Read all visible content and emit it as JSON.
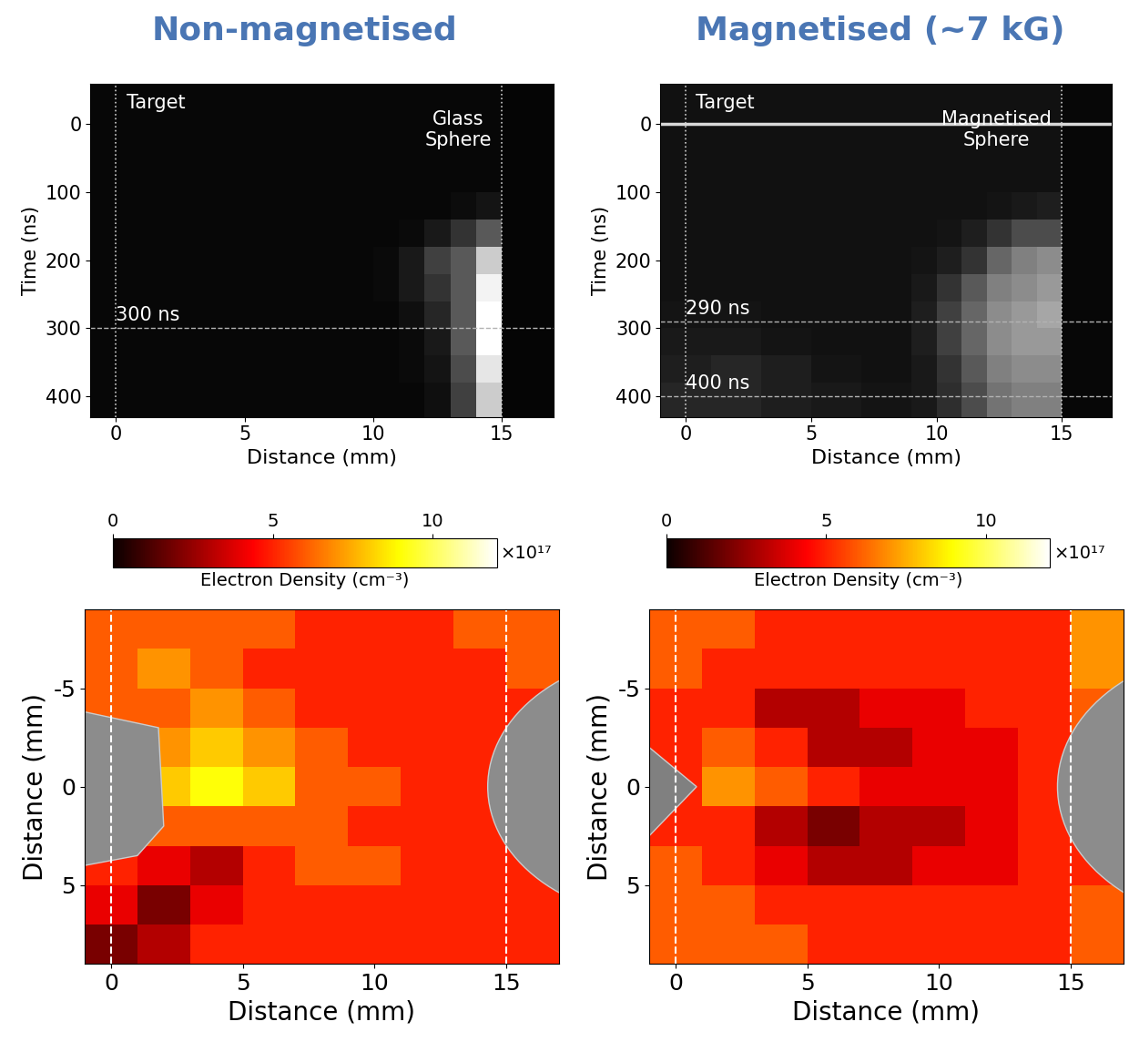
{
  "chart_data": [
    {
      "type": "streak",
      "title": "Non-magnetised",
      "xlabel": "Distance (mm)",
      "ylabel": "Time (ns)",
      "xlim": [
        -1,
        17
      ],
      "ylim": [
        430,
        -60
      ],
      "xticks": [
        0,
        5,
        10,
        15
      ],
      "yticks": [
        0,
        100,
        200,
        300,
        400
      ],
      "target_x": 0,
      "sphere_x": 15,
      "target_label": "Target",
      "sphere_label": "Glass\nSphere",
      "time_labels": [
        {
          "value": 300,
          "label": "300 ns"
        }
      ],
      "clim": [
        0,
        1
      ],
      "x_edges": [
        -1,
        1,
        3,
        5,
        7,
        9,
        10,
        11,
        12,
        13,
        14,
        15,
        16,
        17
      ],
      "y_edges": [
        -60,
        -20,
        20,
        60,
        100,
        140,
        180,
        220,
        260,
        300,
        340,
        380,
        430
      ],
      "cells": [
        [
          0.03,
          0.03,
          0.03,
          0.03,
          0.03,
          0.03,
          0.03,
          0.03,
          0.03,
          0.03,
          0.03,
          0.02,
          0.02
        ],
        [
          0.03,
          0.03,
          0.03,
          0.03,
          0.03,
          0.03,
          0.03,
          0.03,
          0.03,
          0.03,
          0.03,
          0.02,
          0.02
        ],
        [
          0.03,
          0.03,
          0.03,
          0.03,
          0.03,
          0.03,
          0.03,
          0.03,
          0.03,
          0.03,
          0.03,
          0.02,
          0.02
        ],
        [
          0.03,
          0.03,
          0.03,
          0.03,
          0.03,
          0.03,
          0.03,
          0.03,
          0.03,
          0.03,
          0.03,
          0.02,
          0.02
        ],
        [
          0.03,
          0.03,
          0.03,
          0.03,
          0.03,
          0.03,
          0.03,
          0.03,
          0.03,
          0.05,
          0.08,
          0.02,
          0.02
        ],
        [
          0.03,
          0.03,
          0.03,
          0.03,
          0.03,
          0.03,
          0.03,
          0.04,
          0.1,
          0.2,
          0.35,
          0.02,
          0.02
        ],
        [
          0.03,
          0.03,
          0.03,
          0.03,
          0.03,
          0.03,
          0.04,
          0.1,
          0.25,
          0.35,
          0.8,
          0.02,
          0.02
        ],
        [
          0.03,
          0.03,
          0.03,
          0.03,
          0.03,
          0.03,
          0.04,
          0.1,
          0.2,
          0.35,
          0.95,
          0.02,
          0.02
        ],
        [
          0.03,
          0.03,
          0.03,
          0.03,
          0.03,
          0.03,
          0.03,
          0.06,
          0.15,
          0.35,
          1.0,
          0.02,
          0.02
        ],
        [
          0.03,
          0.03,
          0.03,
          0.03,
          0.03,
          0.03,
          0.03,
          0.04,
          0.1,
          0.35,
          1.0,
          0.02,
          0.02
        ],
        [
          0.03,
          0.03,
          0.03,
          0.03,
          0.03,
          0.03,
          0.03,
          0.04,
          0.08,
          0.3,
          0.9,
          0.02,
          0.02
        ],
        [
          0.03,
          0.03,
          0.03,
          0.03,
          0.03,
          0.03,
          0.03,
          0.03,
          0.06,
          0.25,
          0.8,
          0.02,
          0.02
        ]
      ]
    },
    {
      "type": "streak",
      "title": "Magnetised (~7 kG)",
      "xlabel": "Distance (mm)",
      "ylabel": "Time (ns)",
      "xlim": [
        -1,
        17
      ],
      "ylim": [
        430,
        -60
      ],
      "xticks": [
        0,
        5,
        10,
        15
      ],
      "yticks": [
        0,
        100,
        200,
        300,
        400
      ],
      "target_x": 0,
      "sphere_x": 15,
      "target_label": "Target",
      "sphere_label": "Magnetised\nSphere",
      "time_labels": [
        {
          "value": 290,
          "label": "290 ns"
        },
        {
          "value": 400,
          "label": "400 ns"
        }
      ],
      "flash_time": 0,
      "clim": [
        0,
        1
      ],
      "x_edges": [
        -1,
        1,
        3,
        5,
        7,
        9,
        10,
        11,
        12,
        13,
        14,
        15,
        16,
        17
      ],
      "y_edges": [
        -60,
        -20,
        20,
        60,
        100,
        140,
        180,
        220,
        260,
        300,
        340,
        380,
        430
      ],
      "cells": [
        [
          0.07,
          0.07,
          0.07,
          0.07,
          0.07,
          0.07,
          0.07,
          0.07,
          0.07,
          0.07,
          0.07,
          0.03,
          0.03
        ],
        [
          0.07,
          0.07,
          0.07,
          0.07,
          0.07,
          0.07,
          0.07,
          0.07,
          0.07,
          0.07,
          0.07,
          0.03,
          0.03
        ],
        [
          0.07,
          0.07,
          0.07,
          0.07,
          0.07,
          0.07,
          0.07,
          0.07,
          0.07,
          0.07,
          0.07,
          0.03,
          0.03
        ],
        [
          0.07,
          0.07,
          0.07,
          0.07,
          0.07,
          0.07,
          0.07,
          0.07,
          0.07,
          0.07,
          0.07,
          0.03,
          0.03
        ],
        [
          0.07,
          0.07,
          0.07,
          0.07,
          0.07,
          0.07,
          0.07,
          0.07,
          0.08,
          0.1,
          0.12,
          0.03,
          0.03
        ],
        [
          0.07,
          0.07,
          0.07,
          0.07,
          0.07,
          0.07,
          0.08,
          0.12,
          0.2,
          0.3,
          0.3,
          0.03,
          0.03
        ],
        [
          0.07,
          0.07,
          0.07,
          0.07,
          0.07,
          0.08,
          0.12,
          0.2,
          0.4,
          0.5,
          0.55,
          0.03,
          0.03
        ],
        [
          0.07,
          0.07,
          0.07,
          0.07,
          0.07,
          0.1,
          0.2,
          0.35,
          0.5,
          0.55,
          0.6,
          0.03,
          0.03
        ],
        [
          0.08,
          0.08,
          0.07,
          0.07,
          0.07,
          0.12,
          0.25,
          0.4,
          0.55,
          0.6,
          0.65,
          0.03,
          0.03
        ],
        [
          0.1,
          0.1,
          0.08,
          0.07,
          0.07,
          0.12,
          0.25,
          0.4,
          0.55,
          0.6,
          0.6,
          0.03,
          0.03
        ],
        [
          0.12,
          0.15,
          0.12,
          0.08,
          0.07,
          0.1,
          0.2,
          0.35,
          0.5,
          0.55,
          0.55,
          0.03,
          0.03
        ],
        [
          0.15,
          0.15,
          0.12,
          0.1,
          0.08,
          0.1,
          0.18,
          0.3,
          0.45,
          0.5,
          0.5,
          0.03,
          0.03
        ]
      ]
    },
    {
      "type": "heatmap",
      "xlabel": "Distance (mm)",
      "ylabel": "Distance (mm)",
      "xlim": [
        -1,
        17
      ],
      "ylim": [
        9,
        -9
      ],
      "xticks": [
        0,
        5,
        10,
        15
      ],
      "yticks": [
        -5,
        0,
        5
      ],
      "target_x": 0,
      "sphere_x": 15,
      "colorbar": {
        "label": "Electron Density (cm⁻³)",
        "multiplier": "×10¹⁷",
        "range": [
          0,
          12
        ],
        "ticks": [
          0,
          5,
          10
        ]
      },
      "x_edges": [
        -1,
        1,
        3,
        5,
        7,
        9,
        11,
        13,
        15,
        17
      ],
      "y_edges": [
        -9,
        -7,
        -5,
        -3,
        -1,
        1,
        3,
        5,
        7,
        9
      ],
      "cells": [
        [
          6,
          6,
          6,
          6,
          5,
          5,
          5,
          6,
          6
        ],
        [
          6,
          7,
          6,
          5,
          5,
          5,
          5,
          5,
          6
        ],
        [
          6,
          6,
          7,
          6,
          5,
          5,
          5,
          5,
          5
        ],
        [
          6,
          7,
          8,
          7,
          6,
          5,
          5,
          5,
          5
        ],
        [
          6,
          8,
          9,
          8,
          6,
          6,
          5,
          5,
          5
        ],
        [
          6,
          6,
          6,
          6,
          6,
          5,
          5,
          5,
          5
        ],
        [
          5,
          4,
          3,
          5,
          6,
          6,
          5,
          5,
          5
        ],
        [
          4,
          2,
          4,
          5,
          5,
          5,
          5,
          5,
          5
        ],
        [
          2,
          3,
          5,
          5,
          5,
          5,
          5,
          5,
          5
        ]
      ]
    },
    {
      "type": "heatmap",
      "xlabel": "Distance (mm)",
      "ylabel": "Distance (mm)",
      "xlim": [
        -1,
        17
      ],
      "ylim": [
        9,
        -9
      ],
      "xticks": [
        0,
        5,
        10,
        15
      ],
      "yticks": [
        -5,
        0,
        5
      ],
      "target_x": 0,
      "sphere_x": 15,
      "colorbar": {
        "label": "Electron Density (cm⁻³)",
        "multiplier": "×10¹⁷",
        "range": [
          0,
          12
        ],
        "ticks": [
          0,
          5,
          10
        ]
      },
      "x_edges": [
        -1,
        1,
        3,
        5,
        7,
        9,
        11,
        13,
        15,
        17
      ],
      "y_edges": [
        -9,
        -7,
        -5,
        -3,
        -1,
        1,
        3,
        5,
        7,
        9
      ],
      "cells": [
        [
          6,
          6,
          5,
          5,
          5,
          5,
          5,
          5,
          7
        ],
        [
          6,
          5,
          5,
          5,
          5,
          5,
          5,
          5,
          7
        ],
        [
          5,
          5,
          3,
          3,
          4,
          4,
          5,
          5,
          6
        ],
        [
          5,
          6,
          5,
          3,
          3,
          4,
          4,
          5,
          6
        ],
        [
          5,
          7,
          6,
          5,
          4,
          4,
          4,
          5,
          6
        ],
        [
          5,
          5,
          3,
          2,
          3,
          3,
          4,
          5,
          5
        ],
        [
          6,
          5,
          4,
          3,
          3,
          4,
          4,
          5,
          5
        ],
        [
          6,
          6,
          5,
          5,
          5,
          5,
          5,
          5,
          6
        ],
        [
          6,
          6,
          6,
          5,
          5,
          5,
          5,
          5,
          6
        ]
      ]
    }
  ]
}
